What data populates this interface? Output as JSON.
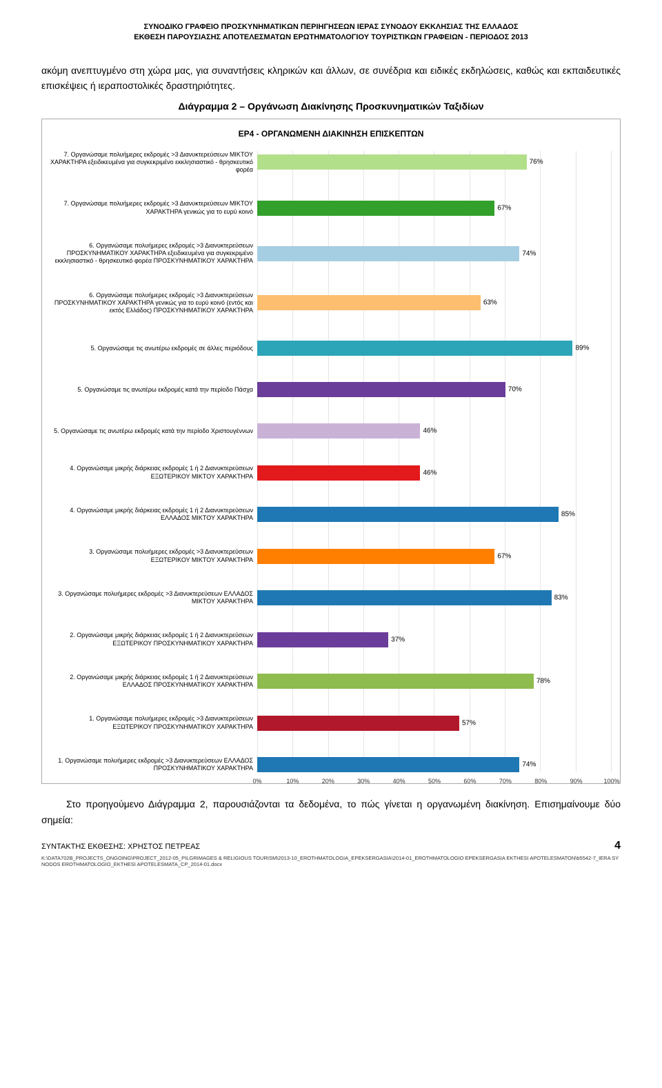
{
  "header": {
    "line1": "ΣΥΝΟΔΙΚΟ ΓΡΑΦΕΙΟ ΠΡΟΣΚΥΝΗΜΑΤΙΚΩΝ ΠΕΡΙΗΓΗΣΕΩΝ ΙΕΡΑΣ ΣΥΝΟΔΟΥ ΕΚΚΛΗΣΙΑΣ ΤΗΣ ΕΛΛΑΔΟΣ",
    "line2": "ΕΚΘΕΣΗ ΠΑΡΟΥΣΙΑΣΗΣ ΑΠΟΤΕΛΕΣΜΑΤΩΝ ΕΡΩΤΗΜΑΤΟΛΟΓΙΟΥ ΤΟΥΡΙΣΤΙΚΩΝ ΓΡΑΦΕΙΩΝ - ΠΕΡΙΟΔΟΣ 2013"
  },
  "para1": "ακόμη ανεπτυγμένο στη χώρα μας, για συναντήσεις κληρικών και άλλων, σε συνέδρια και ειδικές εκδηλώσεις, καθώς και εκπαιδευτικές επισκέψεις ή ιεραποστολικές δραστηριότητες.",
  "diagram_caption": "Διάγραμμα 2 – Οργάνωση Διακίνησης Προσκυνηματικών Ταξιδίων",
  "chart": {
    "title": "ΕΡ4 - ΟΡΓΑΝΩΜΕΝΗ ΔΙΑΚΙΝΗΣΗ ΕΠΙΣΚΕΠΤΩΝ",
    "bars": [
      {
        "label": "7. Οργανώσαμε πολυήμερες εκδρομές >3 Διανυκτερεύσεων ΜΙΚΤΟΥ ΧΑΡΑΚΤΗΡΑ εξειδικευμένα για συγκεκριμένο εκκλησιαστικό - θρησκευτικό φορέα",
        "value": 76,
        "color": "#b2df8a"
      },
      {
        "label": "7. Οργανώσαμε πολυήμερες εκδρομές >3 Διανυκτερεύσεων ΜΙΚΤΟΥ ΧΑΡΑΚΤΗΡΑ γενικώς για το ευρύ κοινό",
        "value": 67,
        "color": "#33a02c"
      },
      {
        "label": "6. Οργανώσαμε πολυήμερες εκδρομές >3 Διανυκτερεύσεων ΠΡΟΣΚΥΝΗΜΑΤΙΚΟΥ ΧΑΡΑΚΤΗΡΑ εξειδικευμένα για συγκεκριμένο εκκλησιαστικό - θρησκευτικό φορέα ΠΡΟΣΚΥΝΗΜΑΤΙΚΟΥ ΧΑΡΑΚΤΗΡΑ",
        "value": 74,
        "color": "#a6cee3"
      },
      {
        "label": "6. Οργανώσαμε πολυήμερες εκδρομές >3 Διανυκτερεύσεων ΠΡΟΣΚΥΝΗΜΑΤΙΚΟΥ ΧΑΡΑΚΤΗΡΑ γενικώς για το ευρύ κοινό (εντός και εκτός Ελλάδος) ΠΡΟΣΚΥΝΗΜΑΤΙΚΟΥ ΧΑΡΑΚΤΗΡΑ",
        "value": 63,
        "color": "#fdbf6f"
      },
      {
        "label": "5. Οργανώσαμε τις ανωτέρω εκδρομές σε άλλες περιόδους",
        "value": 89,
        "color": "#2ca5b8"
      },
      {
        "label": "5. Οργανώσαμε τις ανωτέρω εκδρομές κατά την περίοδο Πάσχα",
        "value": 70,
        "color": "#6a3d9a"
      },
      {
        "label": "5. Οργανώσαμε τις ανωτέρω εκδρομές κατά την περίοδο Χριστουγέννων",
        "value": 46,
        "color": "#cab2d6"
      },
      {
        "label": "4. Οργανώσαμε μικρής διάρκειας εκδρομές 1 ή 2 Διανυκτερεύσεων ΕΞΩΤΕΡΙΚΟΥ ΜΙΚΤΟΥ ΧΑΡΑΚΤΗΡΑ",
        "value": 46,
        "color": "#e31a1c"
      },
      {
        "label": "4. Οργανώσαμε μικρής διάρκειας εκδρομές 1 ή 2 Διανυκτερεύσεων ΕΛΛΑΔΟΣ ΜΙΚΤΟΥ ΧΑΡΑΚΤΗΡΑ",
        "value": 85,
        "color": "#1f78b4"
      },
      {
        "label": "3. Οργανώσαμε πολυήμερες εκδρομές >3 Διανυκτερεύσεων ΕΞΩΤΕΡΙΚΟΥ ΜΙΚΤΟΥ ΧΑΡΑΚΤΗΡΑ",
        "value": 67,
        "color": "#ff7f00"
      },
      {
        "label": "3. Οργανώσαμε πολυήμερες εκδρομές >3 Διανυκτερεύσεων ΕΛΛΑΔΟΣ ΜΙΚΤΟΥ ΧΑΡΑΚΤΗΡΑ",
        "value": 83,
        "color": "#1f78b4"
      },
      {
        "label": "2. Οργανώσαμε μικρής διάρκειας εκδρομές 1 ή 2 Διανυκτερεύσεων ΕΞΩΤΕΡΙΚΟΥ ΠΡΟΣΚΥΝΗΜΑΤΙΚΟΥ ΧΑΡΑΚΤΗΡΑ",
        "value": 37,
        "color": "#6a3d9a"
      },
      {
        "label": "2. Οργανώσαμε μικρής διάρκειας εκδρομές 1 ή 2 Διανυκτερεύσεων ΕΛΛΑΔΟΣ ΠΡΟΣΚΥΝΗΜΑΤΙΚΟΥ ΧΑΡΑΚΤΗΡΑ",
        "value": 78,
        "color": "#8fbc4f"
      },
      {
        "label": "1. Οργανώσαμε πολυήμερες εκδρομές >3 Διανυκτερεύσεων ΕΞΩΤΕΡΙΚΟΥ ΠΡΟΣΚΥΝΗΜΑΤΙΚΟΥ ΧΑΡΑΚΤΗΡΑ",
        "value": 57,
        "color": "#b2182b"
      },
      {
        "label": "1. Οργανώσαμε πολυήμερες εκδρομές >3 Διανυκτερεύσεων ΕΛΛΑΔΟΣ ΠΡΟΣΚΥΝΗΜΑΤΙΚΟΥ ΧΑΡΑΚΤΗΡΑ",
        "value": 74,
        "color": "#1f78b4"
      }
    ],
    "x_ticks": [
      "0%",
      "10%",
      "20%",
      "30%",
      "40%",
      "50%",
      "60%",
      "70%",
      "80%",
      "90%",
      "100%"
    ],
    "xlim_max": 100
  },
  "para2": "Στο προηγούμενο Διάγραμμα 2, παρουσιάζονται τα δεδομένα, το πώς γίνεται η οργανωμένη διακίνηση. Επισημαίνουμε δύο σημεία:",
  "footer": {
    "author": "ΣΥΝΤΑΚΤΗΣ ΕΚΘΕΣΗΣ: ΧΡΗΣΤΟΣ ΠΕΤΡΕΑΣ",
    "page": "4",
    "path": "K:\\DATA702B_PROJECTS_ONGOING\\PROJECT_2012-05_PILGRIMAGES & RELIGIOUS TOURISM\\2013-10_EROTHMATOLOGIA_EPEKSERGASIA\\2014-01_EROTHMATOLOGIO EPEKSERGASIA EKTHESI APOTELESMATON\\b5542-7_IERA SYNODOS EROTHMATOLOGIO_EKTHESI APOTELESMATA_CP_2014-01.docx"
  }
}
